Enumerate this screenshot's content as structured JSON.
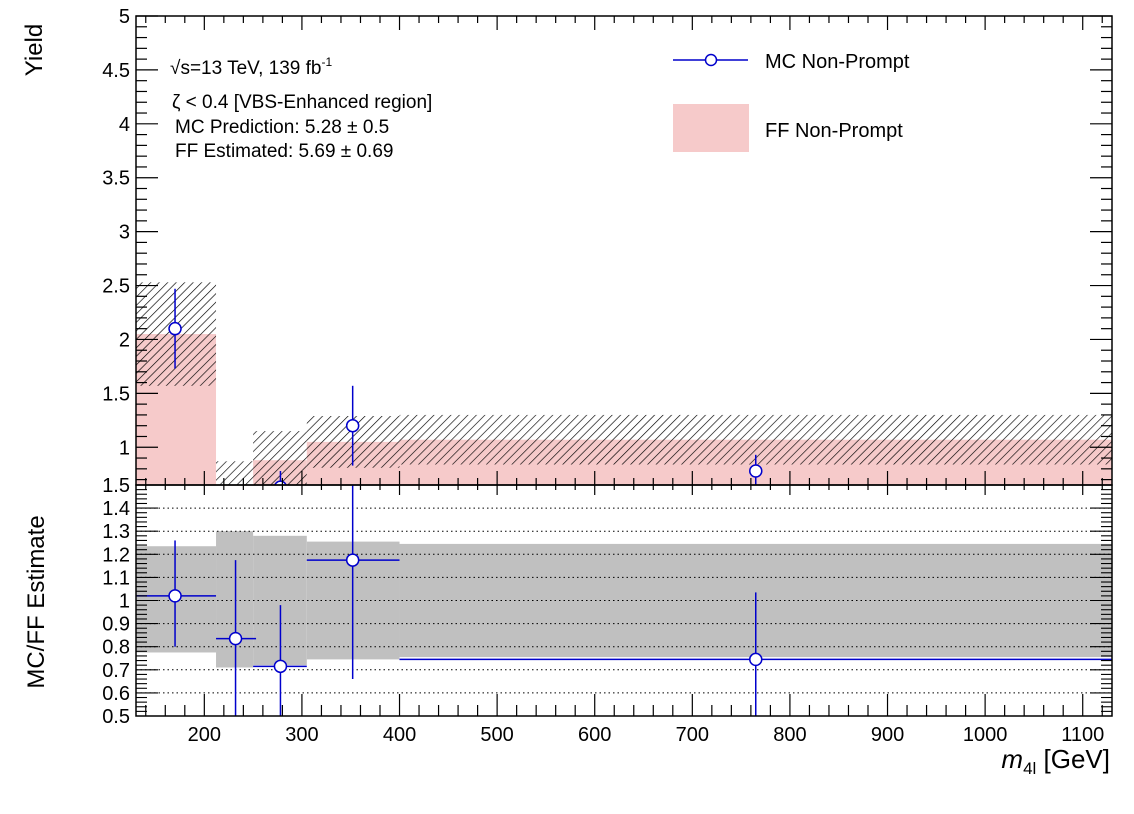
{
  "chart_data": [
    {
      "type": "bar",
      "ylabel": "Yield",
      "xlim": [
        130,
        1130
      ],
      "ylim": [
        0.65,
        5
      ],
      "yticks": [
        1,
        1.5,
        2,
        2.5,
        3,
        3.5,
        4,
        4.5,
        5
      ],
      "ytick_labels": [
        "1",
        "1.5",
        "2",
        "2.5",
        "3",
        "3.5",
        "4",
        "4.5",
        "5"
      ],
      "bin_edges": [
        130,
        212,
        250,
        305,
        400,
        1130
      ],
      "annotations": {
        "energy_sqrt": "√",
        "energy_rest": "s=13 TeV, 139 fb",
        "energy_sup": "-1",
        "region": "ζ < 0.4 [VBS-Enhanced region]",
        "mc_prediction": "MC Prediction: 5.28 ± 0.5",
        "ff_estimated": "FF Estimated: 5.69 ± 0.69"
      },
      "legend": {
        "placement": "top-right",
        "entries": [
          {
            "label": "MC Non-Prompt",
            "style": "marker",
            "color": "#0000cc"
          },
          {
            "label": "FF Non-Prompt",
            "style": "fill",
            "color": "#f6caca"
          }
        ]
      },
      "series": [
        {
          "name": "FF Non-Prompt",
          "style": "filled-histogram",
          "values": [
            2.05,
            0.55,
            0.88,
            1.05,
            1.07
          ],
          "errors": [
            0.48,
            0.32,
            0.27,
            0.24,
            0.23
          ]
        },
        {
          "name": "MC Non-Prompt",
          "style": "points-with-errors",
          "x": [
            170,
            232,
            278,
            352,
            765
          ],
          "y": [
            2.1,
            0.45,
            0.63,
            1.2,
            0.78
          ],
          "yerr": [
            0.37,
            0.2,
            0.15,
            0.37,
            0.15
          ]
        }
      ]
    },
    {
      "type": "scatter",
      "xlabel_main": "m",
      "xlabel_sub": "4l",
      "xlabel_unit": " [GeV]",
      "ylabel": "MC/FF Estimate",
      "xlim": [
        130,
        1130
      ],
      "ylim": [
        0.5,
        1.5
      ],
      "grid": "horizontal dotted",
      "xticks": [
        200,
        300,
        400,
        500,
        600,
        700,
        800,
        900,
        1000,
        1100
      ],
      "xtick_labels": [
        "200",
        "300",
        "400",
        "500",
        "600",
        "700",
        "800",
        "900",
        "1000",
        "1100"
      ],
      "yticks": [
        0.5,
        0.6,
        0.7,
        0.8,
        0.9,
        1.0,
        1.1,
        1.2,
        1.3,
        1.4,
        1.5
      ],
      "ytick_labels": [
        "0.5",
        "0.6",
        "0.7",
        "0.8",
        "0.9",
        "1",
        "1.1",
        "1.2",
        "1.3",
        "1.4",
        "1.5"
      ],
      "band": {
        "color": "#c0c0c0",
        "bin_edges": [
          130,
          212,
          250,
          305,
          400,
          1130
        ],
        "low": [
          0.775,
          0.71,
          0.72,
          0.745,
          0.755
        ],
        "high": [
          1.235,
          1.3,
          1.28,
          1.255,
          1.245
        ]
      },
      "series": [
        {
          "name": "MC/FF",
          "x": [
            170,
            232,
            278,
            352,
            765
          ],
          "xlo": [
            130,
            212,
            250,
            305,
            400
          ],
          "xhi": [
            212,
            253,
            305,
            400,
            1130
          ],
          "y": [
            1.02,
            0.835,
            0.715,
            1.175,
            0.745
          ],
          "ylo": [
            0.8,
            0.5,
            0.5,
            0.66,
            0.5
          ],
          "yhi": [
            1.26,
            1.175,
            0.98,
            1.5,
            1.035
          ]
        }
      ]
    }
  ]
}
